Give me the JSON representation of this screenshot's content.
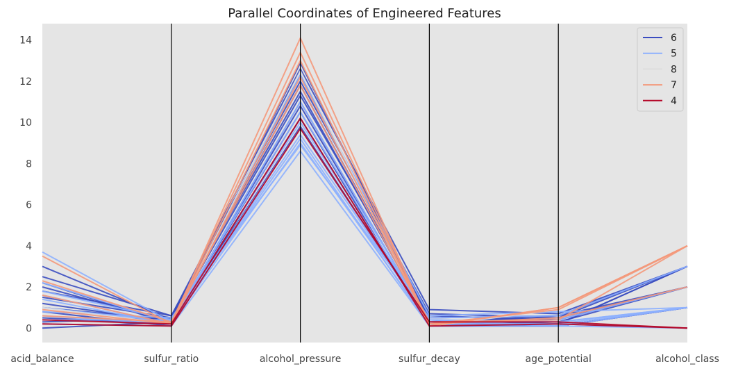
{
  "chart_data": {
    "type": "parallel_coordinates",
    "title": "Parallel Coordinates of Engineered Features",
    "axes": [
      "acid_balance",
      "sulfur_ratio",
      "alcohol_pressure",
      "sulfur_decay",
      "age_potential",
      "alcohol_class"
    ],
    "ylim": [
      -0.7,
      14.8
    ],
    "yticks": [
      0,
      2,
      4,
      6,
      8,
      10,
      12,
      14
    ],
    "grid": false,
    "legend_position": "top-right",
    "series": [
      {
        "name": "6",
        "color": "#3a4cc0",
        "lines": [
          [
            0.0,
            0.3,
            10.5,
            0.1,
            0.1,
            1
          ],
          [
            0.5,
            0.2,
            11.0,
            0.2,
            0.3,
            2
          ],
          [
            1.0,
            0.4,
            11.8,
            0.3,
            0.5,
            2
          ],
          [
            1.5,
            0.5,
            12.3,
            0.5,
            0.6,
            3
          ],
          [
            2.0,
            0.3,
            10.8,
            0.3,
            0.2,
            3
          ],
          [
            2.5,
            0.6,
            12.6,
            0.9,
            0.7,
            3
          ],
          [
            3.0,
            0.4,
            11.3,
            0.6,
            0.4,
            2
          ],
          [
            2.2,
            0.2,
            9.8,
            0.2,
            0.1,
            1
          ],
          [
            1.2,
            0.3,
            12.9,
            0.4,
            0.2,
            3
          ],
          [
            0.8,
            0.1,
            10.2,
            0.1,
            0.1,
            1
          ],
          [
            0.3,
            0.5,
            11.5,
            0.3,
            0.6,
            2
          ],
          [
            1.8,
            0.6,
            12.0,
            0.7,
            0.5,
            3
          ]
        ]
      },
      {
        "name": "5",
        "color": "#8db0fe",
        "lines": [
          [
            0.2,
            0.1,
            8.6,
            0.1,
            0.1,
            0
          ],
          [
            0.6,
            0.2,
            9.0,
            0.2,
            0.2,
            1
          ],
          [
            1.0,
            0.3,
            9.4,
            0.3,
            0.3,
            1
          ],
          [
            1.4,
            0.2,
            9.7,
            0.2,
            0.2,
            0
          ],
          [
            1.8,
            0.4,
            10.0,
            0.4,
            0.1,
            1
          ],
          [
            2.2,
            0.3,
            9.2,
            0.1,
            0.2,
            0
          ],
          [
            3.7,
            0.3,
            12.3,
            0.6,
            0.8,
            1
          ],
          [
            0.8,
            0.5,
            8.9,
            0.5,
            0.6,
            3
          ],
          [
            1.6,
            0.2,
            11.0,
            0.2,
            0.4,
            2
          ],
          [
            0.4,
            0.4,
            10.5,
            0.4,
            0.3,
            1
          ]
        ]
      },
      {
        "name": "8",
        "color": "#dddddd",
        "lines": [
          [
            1.0,
            0.2,
            12.5,
            0.1,
            0.9,
            4
          ]
        ]
      },
      {
        "name": "7",
        "color": "#f4987a",
        "lines": [
          [
            3.5,
            0.2,
            14.1,
            0.1,
            1.0,
            4
          ],
          [
            2.3,
            0.3,
            13.4,
            0.2,
            0.9,
            4
          ],
          [
            0.9,
            0.2,
            12.2,
            0.3,
            0.4,
            4
          ],
          [
            0.6,
            0.3,
            11.8,
            0.2,
            0.5,
            2
          ],
          [
            1.6,
            0.2,
            13.0,
            0.1,
            1.0,
            4
          ]
        ]
      },
      {
        "name": "4",
        "color": "#b40426",
        "lines": [
          [
            0.2,
            0.1,
            9.7,
            0.3,
            0.3,
            0
          ],
          [
            0.4,
            0.2,
            10.2,
            0.1,
            0.2,
            0
          ]
        ]
      }
    ]
  }
}
